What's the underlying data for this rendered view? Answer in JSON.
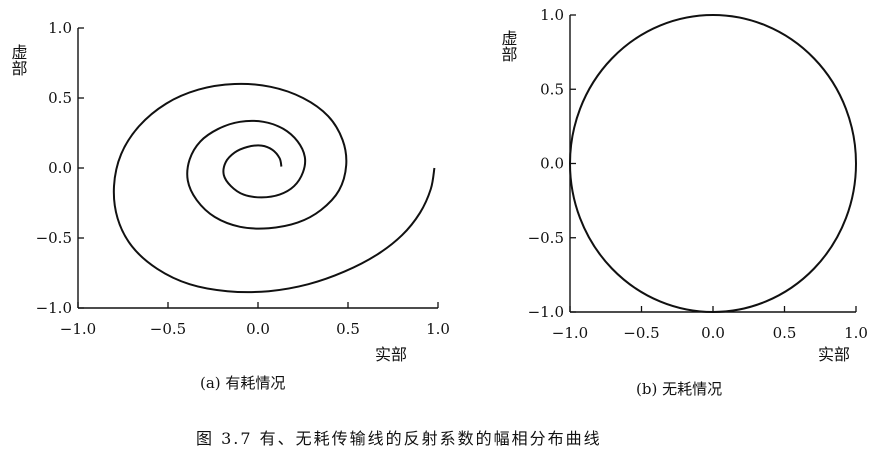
{
  "figure_caption": "图 3.7 有、无耗传输线的反射系数的幅相分布曲线",
  "chart_data": [
    {
      "type": "line",
      "panel": "(a) 有耗情况",
      "caption": "(a) 有耗情况",
      "xlabel": "实部",
      "ylabel": "虚部",
      "xlim": [
        -1.0,
        1.0
      ],
      "ylim": [
        -1.0,
        1.0
      ],
      "x_ticks": [
        "−1.0",
        "−0.5",
        "0.0",
        "0.5",
        "1.0"
      ],
      "y_ticks": [
        "1.0",
        "0.5",
        "0.0",
        "−0.5",
        "−1.0"
      ],
      "grid": false,
      "description": "spiral",
      "series": [
        {
          "points": [
            [
              0.98,
              0.0
            ],
            [
              0.96,
              -0.15
            ],
            [
              0.9,
              -0.32
            ],
            [
              0.8,
              -0.48
            ],
            [
              0.66,
              -0.62
            ],
            [
              0.48,
              -0.74
            ],
            [
              0.28,
              -0.83
            ],
            [
              0.06,
              -0.88
            ],
            [
              -0.17,
              -0.88
            ],
            [
              -0.38,
              -0.83
            ],
            [
              -0.56,
              -0.72
            ],
            [
              -0.7,
              -0.56
            ],
            [
              -0.78,
              -0.36
            ],
            [
              -0.8,
              -0.13
            ],
            [
              -0.76,
              0.1
            ],
            [
              -0.66,
              0.3
            ],
            [
              -0.51,
              0.46
            ],
            [
              -0.33,
              0.56
            ],
            [
              -0.13,
              0.6
            ],
            [
              0.07,
              0.58
            ],
            [
              0.25,
              0.5
            ],
            [
              0.39,
              0.37
            ],
            [
              0.47,
              0.2
            ],
            [
              0.49,
              0.02
            ],
            [
              0.45,
              -0.16
            ],
            [
              0.35,
              -0.3
            ],
            [
              0.22,
              -0.39
            ],
            [
              0.06,
              -0.43
            ],
            [
              -0.1,
              -0.42
            ],
            [
              -0.24,
              -0.35
            ],
            [
              -0.34,
              -0.23
            ],
            [
              -0.39,
              -0.09
            ],
            [
              -0.38,
              0.06
            ],
            [
              -0.32,
              0.19
            ],
            [
              -0.22,
              0.28
            ],
            [
              -0.1,
              0.33
            ],
            [
              0.03,
              0.33
            ],
            [
              0.14,
              0.28
            ],
            [
              0.22,
              0.19
            ],
            [
              0.26,
              0.08
            ],
            [
              0.25,
              -0.03
            ],
            [
              0.2,
              -0.13
            ],
            [
              0.12,
              -0.19
            ],
            [
              0.02,
              -0.21
            ],
            [
              -0.08,
              -0.19
            ],
            [
              -0.15,
              -0.13
            ],
            [
              -0.19,
              -0.05
            ],
            [
              -0.18,
              0.04
            ],
            [
              -0.13,
              0.11
            ],
            [
              -0.06,
              0.15
            ],
            [
              0.02,
              0.16
            ],
            [
              0.08,
              0.13
            ],
            [
              0.12,
              0.07
            ],
            [
              0.13,
              0.01
            ]
          ]
        }
      ]
    },
    {
      "type": "line",
      "panel": "(b) 无耗情况",
      "caption": "(b) 无耗情况",
      "xlabel": "实部",
      "ylabel": "虚部",
      "xlim": [
        -1.0,
        1.0
      ],
      "ylim": [
        -1.0,
        1.0
      ],
      "x_ticks": [
        "−1.0",
        "−0.5",
        "0.0",
        "0.5",
        "1.0"
      ],
      "y_ticks": [
        "1.0",
        "0.5",
        "0.0",
        "−0.5",
        "−1.0"
      ],
      "grid": false,
      "description": "unit circle |Γ| = 1",
      "series": [
        {
          "radius": 1.0,
          "center": [
            0.0,
            0.0
          ]
        }
      ]
    }
  ]
}
